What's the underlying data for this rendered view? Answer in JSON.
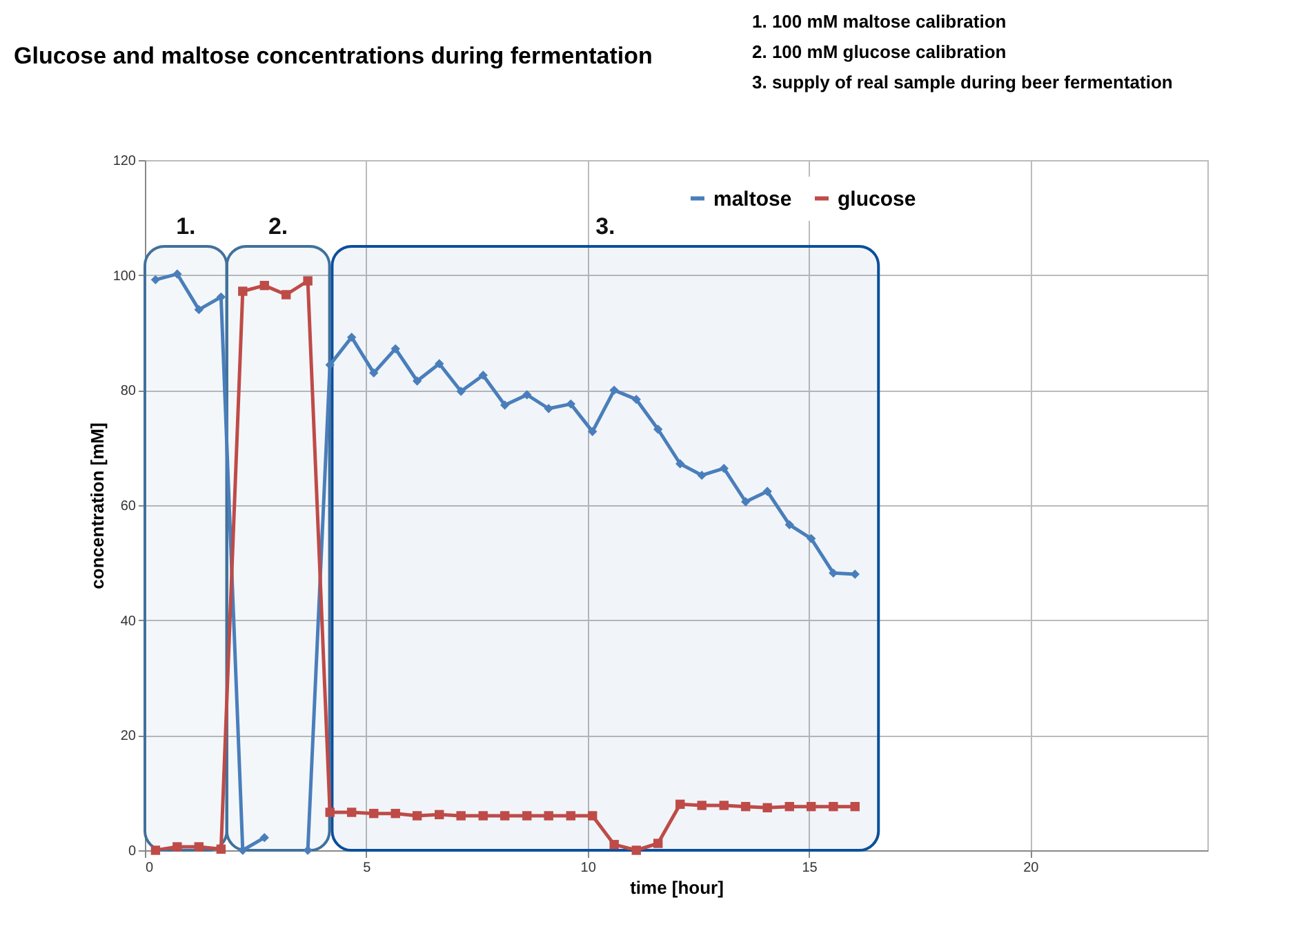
{
  "chart_data": {
    "type": "line",
    "title": "Glucose and maltose concentrations during fermentation",
    "xlabel": "time [hour]",
    "ylabel": "concentration [mM]",
    "annotations": [
      "1. 100 mM  maltose calibration",
      "2. 100 mM glucose calibration",
      "3. supply of real sample during beer fermentation"
    ],
    "x": [
      0.24,
      0.73,
      1.22,
      1.72,
      2.21,
      2.7,
      3.19,
      3.68,
      4.18,
      4.67,
      5.17,
      5.66,
      6.15,
      6.65,
      7.14,
      7.64,
      8.13,
      8.63,
      9.12,
      9.62,
      10.11,
      10.6,
      11.1,
      11.59,
      12.09,
      12.58,
      13.08,
      13.57,
      14.06,
      14.56,
      15.05,
      15.55,
      16.04
    ],
    "series": [
      {
        "name": "maltose",
        "color": "#4a7ebb",
        "marker": "diamond",
        "values": [
          99.2,
          100.2,
          94,
          96.2,
          0,
          2.2,
          null,
          0,
          84.4,
          89.2,
          83,
          87.2,
          81.6,
          84.6,
          79.8,
          82.6,
          77.4,
          79.2,
          76.8,
          77.6,
          72.8,
          80,
          78.4,
          73.2,
          67.2,
          65.2,
          66.4,
          60.6,
          62.4,
          56.6,
          54.2,
          48.2,
          48
        ]
      },
      {
        "name": "glucose",
        "color": "#be4b48",
        "marker": "square",
        "values": [
          0,
          0.6,
          0.6,
          0.2,
          97.2,
          98.2,
          96.6,
          99,
          6.6,
          6.6,
          6.4,
          6.4,
          6,
          6.2,
          6,
          6,
          6,
          6,
          6,
          6,
          6,
          1,
          0,
          1.2,
          8,
          7.8,
          7.8,
          7.6,
          7.4,
          7.6,
          7.6,
          7.6,
          7.6
        ]
      }
    ],
    "bands": [
      {
        "axis": "x",
        "from": 0,
        "to": 1.85,
        "label": "1.",
        "color": "#41719c"
      },
      {
        "axis": "x",
        "from": 1.85,
        "to": 4.17,
        "label": "2.",
        "color": "#41719c"
      },
      {
        "axis": "x",
        "from": 4.23,
        "to": 16.57,
        "label": "3.",
        "color": "#0a4f9c"
      }
    ],
    "xlim": [
      0,
      24
    ],
    "xticks": [
      0,
      5,
      10,
      15,
      20
    ],
    "ylim": [
      0,
      120
    ],
    "yticks": [
      0,
      20,
      40,
      60,
      80,
      100,
      120
    ],
    "grid": true,
    "legend": "top",
    "line_style": "solid"
  }
}
